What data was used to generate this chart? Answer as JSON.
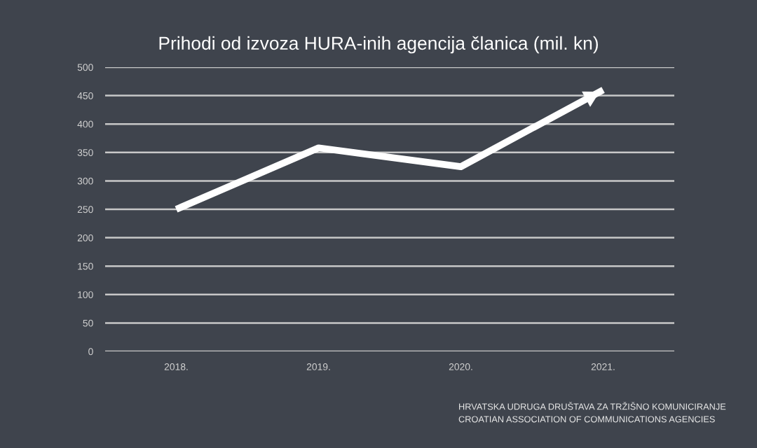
{
  "chart_data": {
    "type": "line",
    "title": "Prihodi od izvoza HURA-inih agencija članica (mil. kn)",
    "categories": [
      "2018.",
      "2019.",
      "2020.",
      "2021."
    ],
    "series": [
      {
        "color": "#ffffff",
        "values": [
          250,
          358,
          325,
          460
        ]
      }
    ],
    "ylim": [
      0,
      500
    ],
    "yticks": [
      0,
      50,
      100,
      150,
      200,
      250,
      300,
      350,
      400,
      450,
      500
    ],
    "grid": "y",
    "legend": false,
    "marker": "none",
    "line_style": "solid",
    "annotations": [
      "HRVATSKA UDRUGA DRUŠTAVA ZA TRŽIŠNO KOMUNICIRANJE",
      "CROATIAN ASSOCIATION OF COMMUNICATIONS AGENCIES"
    ]
  }
}
